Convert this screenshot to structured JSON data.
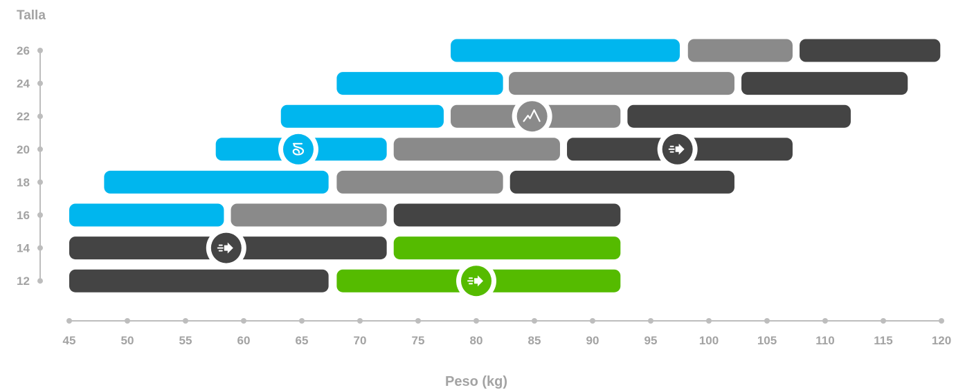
{
  "chart_data": {
    "type": "range-bar",
    "ylabel": "Talla",
    "xlabel": "Peso (kg)",
    "xlim": [
      45,
      120
    ],
    "x_ticks": [
      45,
      50,
      55,
      60,
      65,
      70,
      75,
      80,
      85,
      90,
      95,
      100,
      105,
      110,
      115,
      120
    ],
    "y_ticks": [
      26,
      24,
      22,
      20,
      18,
      16,
      14,
      12
    ],
    "colors": {
      "blue": "#00b6ee",
      "gray": "#8a8a8a",
      "dark": "#444444",
      "green": "#55bb00",
      "axis": "#bdbdbd"
    },
    "rows": [
      {
        "size": 26,
        "bars": [
          {
            "color": "blue",
            "from": 77.8,
            "to": 97.5
          },
          {
            "color": "gray",
            "from": 98.2,
            "to": 107.2
          },
          {
            "color": "dark",
            "from": 107.8,
            "to": 119.9
          }
        ]
      },
      {
        "size": 24,
        "bars": [
          {
            "color": "blue",
            "from": 68,
            "to": 82.3
          },
          {
            "color": "gray",
            "from": 82.8,
            "to": 102.2
          },
          {
            "color": "dark",
            "from": 102.8,
            "to": 117.1
          }
        ]
      },
      {
        "size": 22,
        "bars": [
          {
            "color": "blue",
            "from": 63.2,
            "to": 77.2
          },
          {
            "color": "gray",
            "from": 77.8,
            "to": 92.4
          },
          {
            "color": "dark",
            "from": 93,
            "to": 112.2
          }
        ]
      },
      {
        "size": 20,
        "bars": [
          {
            "color": "blue",
            "from": 57.6,
            "to": 72.3
          },
          {
            "color": "gray",
            "from": 72.9,
            "to": 87.2
          },
          {
            "color": "dark",
            "from": 87.8,
            "to": 107.2
          }
        ]
      },
      {
        "size": 18,
        "bars": [
          {
            "color": "blue",
            "from": 48,
            "to": 67.3
          },
          {
            "color": "gray",
            "from": 68,
            "to": 82.3
          },
          {
            "color": "dark",
            "from": 82.9,
            "to": 102.2
          }
        ]
      },
      {
        "size": 16,
        "bars": [
          {
            "color": "blue",
            "from": 45,
            "to": 58.3
          },
          {
            "color": "gray",
            "from": 58.9,
            "to": 72.3
          },
          {
            "color": "dark",
            "from": 72.9,
            "to": 92.4
          }
        ]
      },
      {
        "size": 14,
        "bars": [
          {
            "color": "dark",
            "from": 45,
            "to": 72.3
          },
          {
            "color": "green",
            "from": 72.9,
            "to": 92.4
          }
        ]
      },
      {
        "size": 12,
        "bars": [
          {
            "color": "dark",
            "from": 45,
            "to": 67.3
          },
          {
            "color": "green",
            "from": 68,
            "to": 92.4
          }
        ]
      }
    ],
    "markers": [
      {
        "icon": "spiral-icon",
        "size": 20,
        "x": 64.7,
        "fill": "blue"
      },
      {
        "icon": "mountain-icon",
        "size": 22,
        "x": 84.8,
        "fill": "gray"
      },
      {
        "icon": "speed-arrow-icon",
        "size": 20,
        "x": 97.3,
        "fill": "dark"
      },
      {
        "icon": "speed-arrow-icon",
        "size": 14,
        "x": 58.5,
        "fill": "dark"
      },
      {
        "icon": "speed-arrow-icon",
        "size": 12,
        "x": 80,
        "fill": "green"
      }
    ]
  }
}
